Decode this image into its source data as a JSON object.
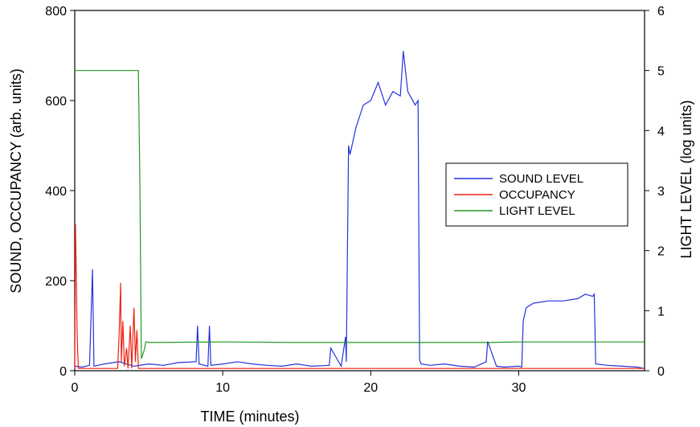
{
  "chart_data": {
    "type": "line",
    "title": "",
    "xlabel": "TIME (minutes)",
    "ylabel_left": "SOUND, OCCUPANCY (arb. units)",
    "ylabel_right": "LIGHT LEVEL (log units)",
    "xlim": [
      0,
      38.5
    ],
    "ylim_left": [
      0,
      800
    ],
    "ylim_right": [
      0,
      6
    ],
    "x_ticks": [
      "0",
      "10",
      "20",
      "30"
    ],
    "y_left_ticks": [
      "0",
      "200",
      "400",
      "600",
      "800"
    ],
    "y_right_ticks": [
      "0",
      "1",
      "2",
      "3",
      "4",
      "5",
      "6"
    ],
    "grid": false,
    "legend_position": "center-right",
    "colors": {
      "sound": "#2233dd",
      "occupancy": "#ee2211",
      "light": "#229922"
    },
    "series": [
      {
        "name": "SOUND LEVEL",
        "axis": "left",
        "x": [
          0,
          0.5,
          1.0,
          1.2,
          1.3,
          2.0,
          3.0,
          4.0,
          5.0,
          6.0,
          7.0,
          8.2,
          8.3,
          8.4,
          9.0,
          9.1,
          9.2,
          10.0,
          11.0,
          12.0,
          13.0,
          14.0,
          15.0,
          16.0,
          17.2,
          17.3,
          18.0,
          18.3,
          18.35,
          18.5,
          18.6,
          19.0,
          19.5,
          20.0,
          20.5,
          21.0,
          21.5,
          22.0,
          22.2,
          22.5,
          23.0,
          23.2,
          23.3,
          23.4,
          24.0,
          25.0,
          26.0,
          27.0,
          27.8,
          27.9,
          28.5,
          29.0,
          30.0,
          30.2,
          30.3,
          30.5,
          31.0,
          32.0,
          33.0,
          34.0,
          34.5,
          35.0,
          35.1,
          35.2,
          36.0,
          37.0,
          38.0,
          38.5
        ],
        "y": [
          10,
          8,
          12,
          225,
          10,
          15,
          20,
          10,
          15,
          12,
          18,
          20,
          100,
          15,
          10,
          100,
          12,
          15,
          20,
          15,
          12,
          10,
          15,
          10,
          12,
          50,
          10,
          75,
          20,
          500,
          480,
          540,
          590,
          600,
          640,
          590,
          620,
          610,
          710,
          620,
          590,
          600,
          25,
          15,
          12,
          15,
          10,
          8,
          20,
          65,
          10,
          8,
          10,
          8,
          110,
          140,
          150,
          155,
          155,
          160,
          170,
          165,
          170,
          15,
          12,
          10,
          8,
          5
        ]
      },
      {
        "name": "OCCUPANCY",
        "axis": "left",
        "x": [
          0,
          0.05,
          0.1,
          0.15,
          0.2,
          0.25,
          1.0,
          2.9,
          3.0,
          3.1,
          3.15,
          3.25,
          3.35,
          3.5,
          3.6,
          3.75,
          3.85,
          4.0,
          4.1,
          4.2,
          4.3,
          4.5,
          10,
          20,
          30,
          38.5
        ],
        "y": [
          5,
          325,
          230,
          100,
          40,
          5,
          5,
          5,
          80,
          195,
          20,
          110,
          10,
          50,
          5,
          100,
          5,
          140,
          20,
          90,
          5,
          5,
          5,
          5,
          5,
          5
        ]
      },
      {
        "name": "LIGHT LEVEL",
        "axis": "right",
        "x": [
          0,
          4.3,
          4.4,
          4.5,
          4.7,
          4.8,
          5.0,
          10,
          15,
          20,
          25,
          28,
          30,
          35,
          38.5
        ],
        "y": [
          5.0,
          5.0,
          3.2,
          0.2,
          0.35,
          0.48,
          0.47,
          0.48,
          0.47,
          0.47,
          0.47,
          0.47,
          0.48,
          0.48,
          0.48
        ]
      }
    ]
  }
}
